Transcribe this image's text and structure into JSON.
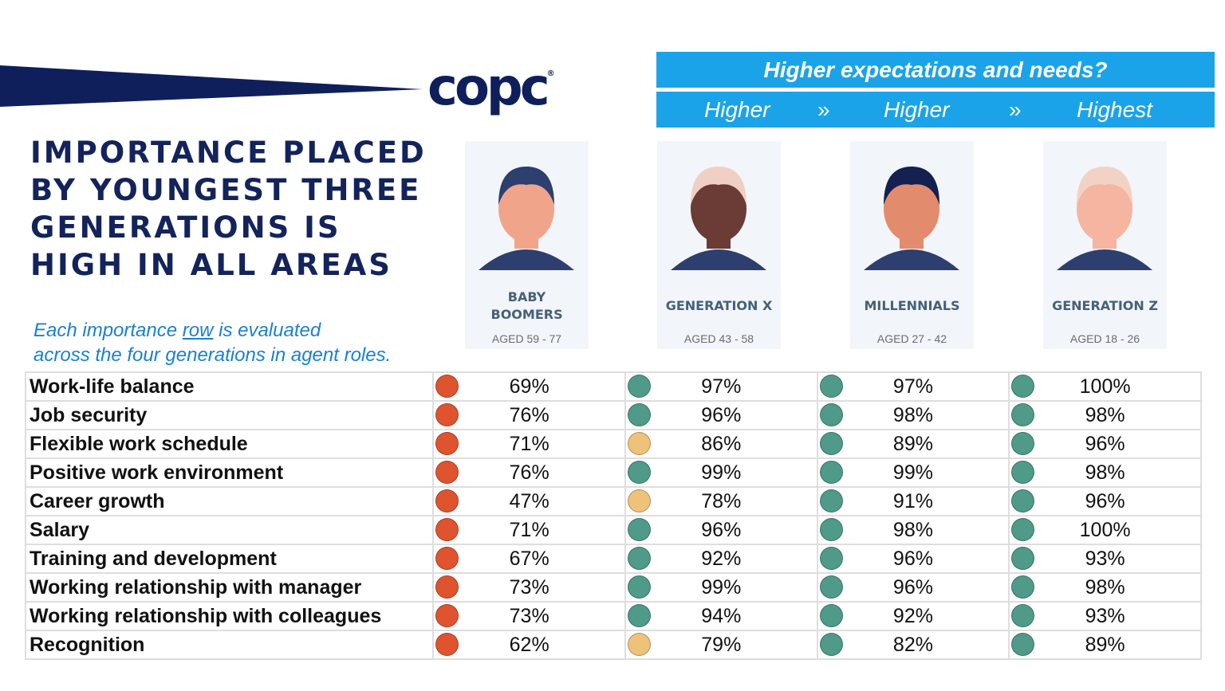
{
  "logo": "copc",
  "title": "IMPORTANCE PLACED BY YOUNGEST THREE GENERATIONS IS HIGH IN ALL AREAS",
  "subtitle": {
    "pre": "Each importance ",
    "link": "row",
    "post": " is evaluated",
    "line2": "across the four generations in agent roles."
  },
  "banner": {
    "title": "Higher expectations and needs?",
    "steps": [
      "Higher",
      "»",
      "Higher",
      "»",
      "Highest"
    ]
  },
  "colors": {
    "red": "#e0532f",
    "green": "#4f9a88",
    "amber": "#efc27a",
    "banner": "#1aa3e8",
    "navy": "#13235b"
  },
  "generations": [
    {
      "name": "BABY BOOMERS",
      "age": "AGED 59 - 77"
    },
    {
      "name": "GENERATION X",
      "age": "AGED 43 - 58"
    },
    {
      "name": "MILLENNIALS",
      "age": "AGED 27 - 42"
    },
    {
      "name": "GENERATION Z",
      "age": "AGED 18 - 26"
    }
  ],
  "rows": [
    {
      "label": "Work-life balance",
      "values": [
        "69%",
        "97%",
        "97%",
        "100%"
      ],
      "status": [
        "red",
        "green",
        "green",
        "green"
      ]
    },
    {
      "label": "Job security",
      "values": [
        "76%",
        "96%",
        "98%",
        "98%"
      ],
      "status": [
        "red",
        "green",
        "green",
        "green"
      ]
    },
    {
      "label": "Flexible work schedule",
      "values": [
        "71%",
        "86%",
        "89%",
        "96%"
      ],
      "status": [
        "red",
        "amber",
        "green",
        "green"
      ]
    },
    {
      "label": "Positive work environment",
      "values": [
        "76%",
        "99%",
        "99%",
        "98%"
      ],
      "status": [
        "red",
        "green",
        "green",
        "green"
      ]
    },
    {
      "label": "Career growth",
      "values": [
        "47%",
        "78%",
        "91%",
        "96%"
      ],
      "status": [
        "red",
        "amber",
        "green",
        "green"
      ]
    },
    {
      "label": "Salary",
      "values": [
        "71%",
        "96%",
        "98%",
        "100%"
      ],
      "status": [
        "red",
        "green",
        "green",
        "green"
      ]
    },
    {
      "label": "Training and development",
      "values": [
        "67%",
        "92%",
        "96%",
        "93%"
      ],
      "status": [
        "red",
        "green",
        "green",
        "green"
      ]
    },
    {
      "label": "Working relationship with manager",
      "values": [
        "73%",
        "99%",
        "96%",
        "98%"
      ],
      "status": [
        "red",
        "green",
        "green",
        "green"
      ]
    },
    {
      "label": "Working relationship with  colleagues",
      "values": [
        "73%",
        "94%",
        "92%",
        "93%"
      ],
      "status": [
        "red",
        "green",
        "green",
        "green"
      ]
    },
    {
      "label": "Recognition",
      "values": [
        "62%",
        "79%",
        "82%",
        "89%"
      ],
      "status": [
        "red",
        "amber",
        "green",
        "green"
      ]
    }
  ]
}
